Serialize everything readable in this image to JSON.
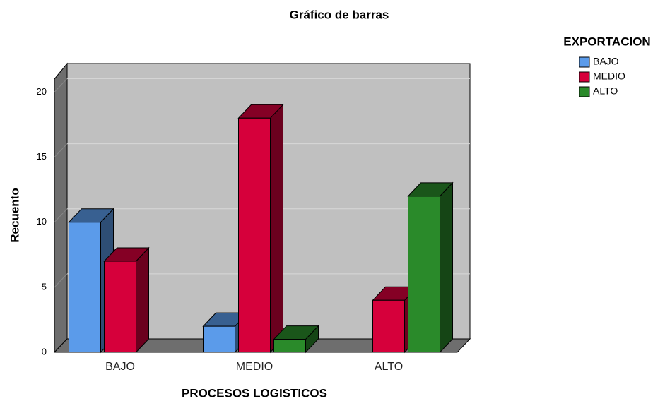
{
  "chart_data": {
    "type": "bar3d",
    "title": "Gráfico de barras",
    "x_label": "PROCESOS LOGISTICOS",
    "y_label": "Recuento",
    "legend_title": "EXPORTACION",
    "legend": "top-right",
    "categories": [
      "BAJO",
      "MEDIO",
      "ALTO"
    ],
    "series": [
      {
        "name": "BAJO",
        "color": "#5b9bea",
        "values": [
          10,
          2,
          0
        ]
      },
      {
        "name": "MEDIO",
        "color": "#d6003b",
        "values": [
          7,
          18,
          4
        ]
      },
      {
        "name": "ALTO",
        "color": "#2a8a2a",
        "values": [
          0,
          1,
          12
        ]
      }
    ],
    "ylim": [
      0,
      21
    ],
    "yticks": [
      0,
      5,
      10,
      15,
      20
    ],
    "grid": true
  }
}
